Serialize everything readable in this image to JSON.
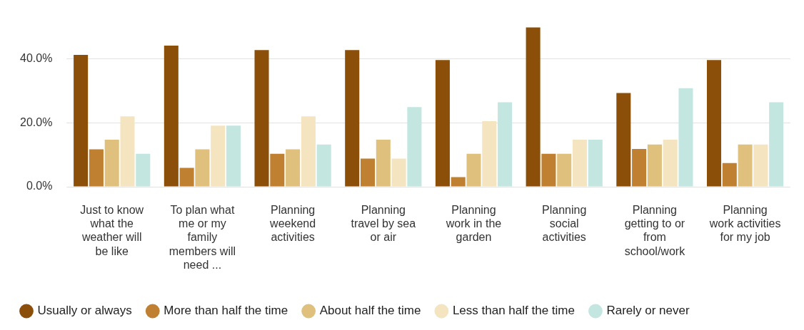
{
  "chart_data": {
    "type": "bar",
    "categories": [
      "Just to know what the weather will be like",
      "To plan what me or my family members will need ...",
      "Planning weekend activities",
      "Planning travel by sea or air",
      "Planning work in the garden",
      "Planning social activities",
      "Planning getting to or from school/work",
      "Planning work activities for my job"
    ],
    "series": [
      {
        "name": "Usually or always",
        "color": "#8b4f0a",
        "values": [
          41.2,
          44.1,
          42.7,
          42.7,
          39.6,
          49.8,
          29.3,
          39.6
        ]
      },
      {
        "name": "More than half the time",
        "color": "#c08032",
        "values": [
          11.7,
          5.9,
          10.3,
          8.8,
          3.0,
          10.3,
          11.8,
          7.4
        ]
      },
      {
        "name": "About half the time",
        "color": "#dfc07c",
        "values": [
          14.7,
          11.7,
          11.7,
          14.7,
          10.3,
          10.3,
          13.2,
          13.2
        ]
      },
      {
        "name": "Less than half the time",
        "color": "#f5e4c0",
        "values": [
          22.0,
          19.1,
          22.0,
          8.8,
          20.5,
          14.7,
          14.7,
          13.2
        ]
      },
      {
        "name": "Rarely or never",
        "color": "#c3e6e0",
        "values": [
          10.3,
          19.1,
          13.2,
          24.9,
          26.4,
          14.7,
          30.8,
          26.4
        ]
      }
    ],
    "ylim": [
      0,
      50
    ],
    "yticks": [
      {
        "value": 0,
        "label": "0.0%"
      },
      {
        "value": 20,
        "label": "20.0%"
      },
      {
        "value": 40,
        "label": "40.0%"
      }
    ],
    "grid": "y",
    "legend": "bottom"
  }
}
